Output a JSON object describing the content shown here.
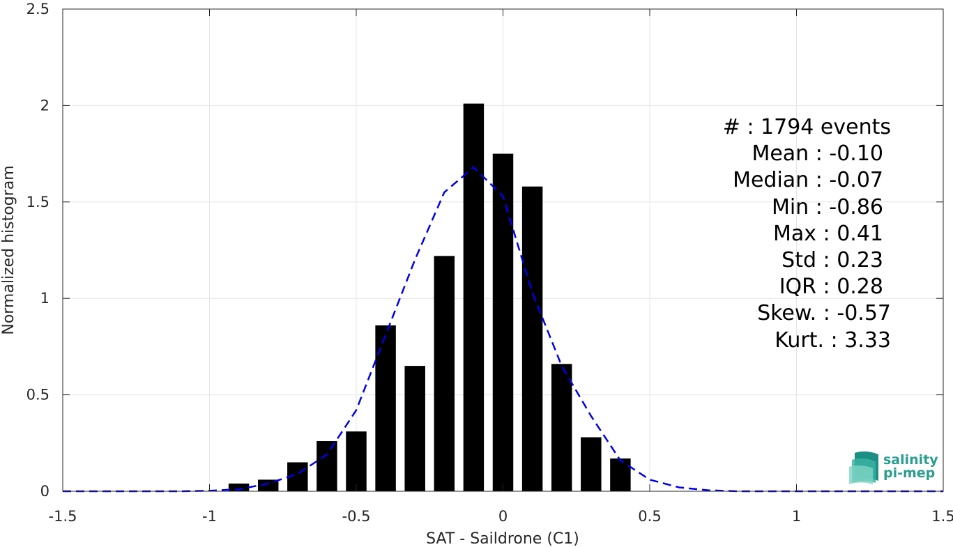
{
  "chart_data": {
    "type": "bar",
    "xlabel": "SAT - Saildrone (C1)",
    "ylabel": "Normalized histogram",
    "xlim": [
      -1.5,
      1.5
    ],
    "ylim": [
      0,
      2.5
    ],
    "x_ticks": [
      -1.5,
      -1,
      -0.5,
      0,
      0.5,
      1,
      1.5
    ],
    "x_tick_labels": [
      "-1.5",
      "-1",
      "-0.5",
      "0",
      "0.5",
      "1",
      "1.5"
    ],
    "y_ticks": [
      0,
      0.5,
      1,
      1.5,
      2,
      2.5
    ],
    "y_tick_labels": [
      "0",
      "0.5",
      "1",
      "1.5",
      "2",
      "2.5"
    ],
    "grid": true,
    "bar_width": 0.07,
    "bars": {
      "x": [
        -0.9,
        -0.8,
        -0.7,
        -0.6,
        -0.5,
        -0.4,
        -0.3,
        -0.2,
        -0.1,
        0.0,
        0.1,
        0.2,
        0.3,
        0.4
      ],
      "values": [
        0.04,
        0.06,
        0.15,
        0.26,
        0.31,
        0.86,
        0.65,
        1.22,
        2.01,
        1.75,
        1.58,
        0.66,
        0.28,
        0.17
      ]
    },
    "series": [
      {
        "style": "dashed",
        "x": [
          -1.5,
          -1.4,
          -1.3,
          -1.2,
          -1.1,
          -1.0,
          -0.9,
          -0.8,
          -0.7,
          -0.6,
          -0.5,
          -0.4,
          -0.3,
          -0.2,
          -0.1,
          0.0,
          0.1,
          0.2,
          0.3,
          0.4,
          0.5,
          0.6,
          0.7,
          0.8,
          0.9,
          1.0,
          1.1,
          1.2,
          1.3,
          1.4,
          1.5
        ],
        "values": [
          0,
          0,
          0,
          0,
          0,
          0.003,
          0.01,
          0.04,
          0.09,
          0.19,
          0.42,
          0.81,
          1.2,
          1.55,
          1.68,
          1.53,
          1.03,
          0.65,
          0.39,
          0.16,
          0.06,
          0.02,
          0.005,
          0,
          0,
          0,
          0,
          0,
          0,
          0,
          0
        ]
      }
    ]
  },
  "stats": [
    "#  : 1794 events",
    "Mean : -0.10",
    "Median : -0.07",
    "Min : -0.86",
    "Max : 0.41",
    "Std : 0.23",
    "IQR : 0.28",
    "Skew. : -0.57",
    "Kurt. : 3.33"
  ],
  "logo": {
    "line1": "salinity",
    "line2": "pi-mep"
  },
  "colors": {
    "bars": "#000000",
    "fit_line": "#0000ee",
    "grid": "#e6e6e6",
    "axes": "#262626",
    "logo_accent": "#2a9d8f"
  }
}
